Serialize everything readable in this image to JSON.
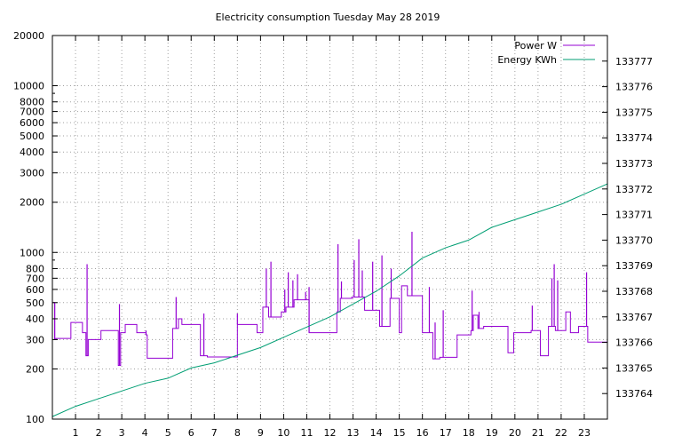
{
  "chart_data": {
    "type": "line",
    "title": "Electricity consumption Tuesday May 28 2019",
    "xlabel": "",
    "ylabel": "",
    "xlim": [
      0,
      24
    ],
    "ylim": [
      100,
      20000
    ],
    "yscale": "log",
    "y2lim": [
      133763.0,
      133778.0
    ],
    "grid": true,
    "legend_position": "top-right",
    "xticks": [
      1,
      2,
      3,
      4,
      5,
      6,
      7,
      8,
      9,
      10,
      11,
      12,
      13,
      14,
      15,
      16,
      17,
      18,
      19,
      20,
      21,
      22,
      23
    ],
    "yticks_labeled": [
      100,
      200,
      300,
      400,
      500,
      600,
      700,
      800,
      1000,
      2000,
      3000,
      4000,
      5000,
      6000,
      7000,
      8000,
      10000,
      20000
    ],
    "yticks_minor": [
      900,
      9000
    ],
    "y2ticks": [
      133764,
      133765,
      133766,
      133767,
      133768,
      133769,
      133770,
      133771,
      133772,
      133773,
      133774,
      133775,
      133776,
      133777
    ],
    "series": [
      {
        "name": "Power W",
        "axis": "left",
        "color": "#9400d3",
        "step": true,
        "x": [
          0.0,
          0.1,
          0.15,
          0.8,
          1.3,
          1.45,
          1.55,
          2.1,
          2.85,
          2.95,
          3.15,
          3.65,
          4.05,
          4.1,
          5.2,
          5.45,
          5.6,
          6.4,
          6.7,
          8.0,
          8.85,
          9.1,
          9.35,
          9.9,
          10.1,
          10.45,
          11.1,
          12.3,
          12.45,
          12.95,
          13.5,
          14.15,
          14.6,
          15.0,
          15.1,
          15.35,
          16.0,
          16.45,
          16.75,
          17.5,
          18.1,
          18.2,
          18.4,
          18.65,
          19.7,
          19.95,
          20.7,
          21.1,
          21.45,
          21.75,
          22.2,
          22.4,
          22.75,
          23.15,
          24.0
        ],
        "y": [
          500,
          300,
          305,
          380,
          330,
          240,
          300,
          340,
          210,
          330,
          370,
          330,
          320,
          232,
          350,
          400,
          370,
          240,
          236,
          370,
          330,
          470,
          410,
          440,
          470,
          520,
          330,
          440,
          530,
          540,
          450,
          360,
          530,
          330,
          630,
          550,
          330,
          230,
          235,
          320,
          340,
          420,
          350,
          360,
          250,
          330,
          340,
          240,
          360,
          340,
          440,
          330,
          360,
          290,
          290
        ],
        "spikes": [
          [
            0.1,
            500
          ],
          [
            1.5,
            850
          ],
          [
            2.9,
            490
          ],
          [
            4.05,
            340
          ],
          [
            5.35,
            540
          ],
          [
            6.55,
            430
          ],
          [
            8.0,
            430
          ],
          [
            9.25,
            800
          ],
          [
            9.45,
            880
          ],
          [
            10.05,
            600
          ],
          [
            10.2,
            760
          ],
          [
            10.4,
            680
          ],
          [
            10.6,
            740
          ],
          [
            10.95,
            580
          ],
          [
            11.1,
            620
          ],
          [
            12.35,
            1120
          ],
          [
            12.5,
            670
          ],
          [
            13.05,
            900
          ],
          [
            13.25,
            1200
          ],
          [
            13.4,
            780
          ],
          [
            13.85,
            880
          ],
          [
            14.25,
            960
          ],
          [
            14.65,
            800
          ],
          [
            15.55,
            1330
          ],
          [
            16.3,
            620
          ],
          [
            16.55,
            380
          ],
          [
            16.9,
            450
          ],
          [
            18.15,
            590
          ],
          [
            18.45,
            440
          ],
          [
            20.75,
            480
          ],
          [
            21.6,
            700
          ],
          [
            21.7,
            850
          ],
          [
            21.85,
            680
          ],
          [
            23.1,
            760
          ]
        ]
      },
      {
        "name": "Energy KWh",
        "axis": "right",
        "color": "#009e73",
        "x": [
          0,
          1,
          2,
          3,
          4,
          5,
          6,
          7,
          8,
          9,
          10,
          11,
          12,
          13,
          14,
          15,
          16,
          17,
          18,
          19,
          20,
          21,
          22,
          23,
          24
        ],
        "y": [
          133763.1,
          133763.5,
          133763.8,
          133764.1,
          133764.4,
          133764.6,
          133765.0,
          133765.2,
          133765.5,
          133765.8,
          133766.2,
          133766.6,
          133767.0,
          133767.5,
          133768.0,
          133768.6,
          133769.3,
          133769.7,
          133770.0,
          133770.5,
          133770.8,
          133771.1,
          133771.4,
          133771.8,
          133772.2
        ]
      }
    ]
  }
}
